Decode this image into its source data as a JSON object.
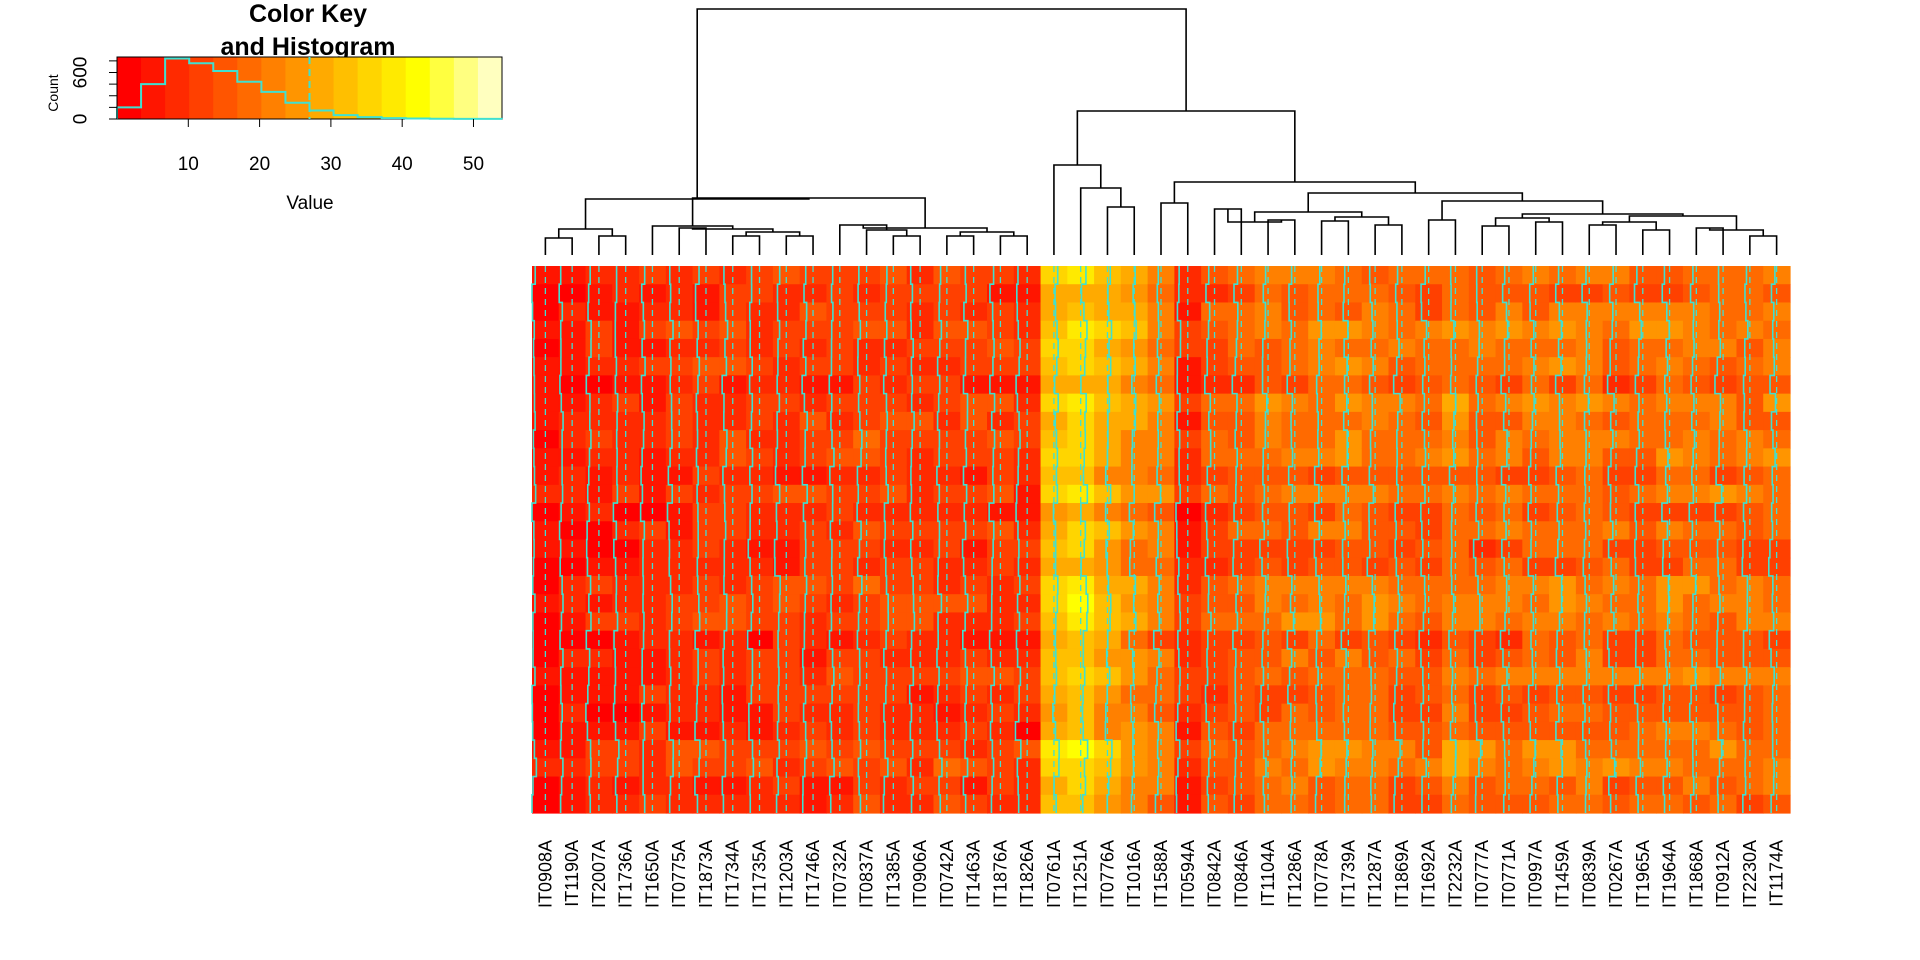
{
  "chart_data": {
    "type": "heatmap",
    "subtype": "heatmap with column dendrogram, trace lines and color key",
    "color_key": {
      "title_line1": "Color Key",
      "title_line2": "and Histogram",
      "xlabel": "Value",
      "ylabel": "Count",
      "x_ticks": [
        10,
        20,
        30,
        40,
        50
      ],
      "y_ticks": [
        0,
        600
      ],
      "value_range": [
        0,
        54
      ],
      "palette": [
        "#ff0000",
        "#ff1500",
        "#ff2a00",
        "#ff4000",
        "#ff5500",
        "#ff6a00",
        "#ff8000",
        "#ff9500",
        "#ffaa00",
        "#ffbf00",
        "#ffd500",
        "#ffea00",
        "#ffff00",
        "#ffff40",
        "#ffff80",
        "#ffffbf"
      ],
      "histogram_bins": [
        0,
        3.375,
        6.75,
        10.125,
        13.5,
        16.875,
        20.25,
        23.625,
        27,
        30.375,
        33.75,
        37.125,
        40.5,
        43.875,
        47.25,
        50.625,
        54
      ],
      "histogram_counts": [
        150,
        450,
        780,
        720,
        620,
        480,
        350,
        210,
        110,
        50,
        25,
        12,
        6,
        3,
        2,
        1
      ],
      "histogram_color": "#40e0d0",
      "dashed_reference": 27
    },
    "trace_color": "#40e0d0",
    "columns": [
      "IT0908A",
      "IT1190A",
      "IT2007A",
      "IT1736A",
      "IT1650A",
      "IT0775A",
      "IT1873A",
      "IT1734A",
      "IT1735A",
      "IT1203A",
      "IT1746A",
      "IT0732A",
      "IT0837A",
      "IT1385A",
      "IT0906A",
      "IT0742A",
      "IT1463A",
      "IT1876A",
      "IT1826A",
      "IT0761A",
      "IT1251A",
      "IT0776A",
      "IT1016A",
      "IT1588A",
      "IT0594A",
      "IT0842A",
      "IT0846A",
      "IT1104A",
      "IT1286A",
      "IT0778A",
      "IT1739A",
      "IT1287A",
      "IT1869A",
      "IT1692A",
      "IT2232A",
      "IT0777A",
      "IT0771A",
      "IT0997A",
      "IT1459A",
      "IT0839A",
      "IT0267A",
      "IT1965A",
      "IT1964A",
      "IT1868A",
      "IT0912A",
      "IT2230A",
      "IT1174A"
    ],
    "column_means": [
      3,
      5,
      6,
      7,
      8,
      9,
      9,
      10,
      9,
      9,
      10,
      11,
      12,
      11,
      10,
      11,
      10,
      10,
      8,
      30,
      34,
      28,
      24,
      20,
      8,
      14,
      15,
      17,
      18,
      18,
      19,
      18,
      16,
      15,
      20,
      16,
      17,
      18,
      19,
      18,
      17,
      16,
      18,
      19,
      17,
      16,
      18
    ],
    "row_count": 30,
    "legend_placement": "top-left",
    "grid": false
  }
}
